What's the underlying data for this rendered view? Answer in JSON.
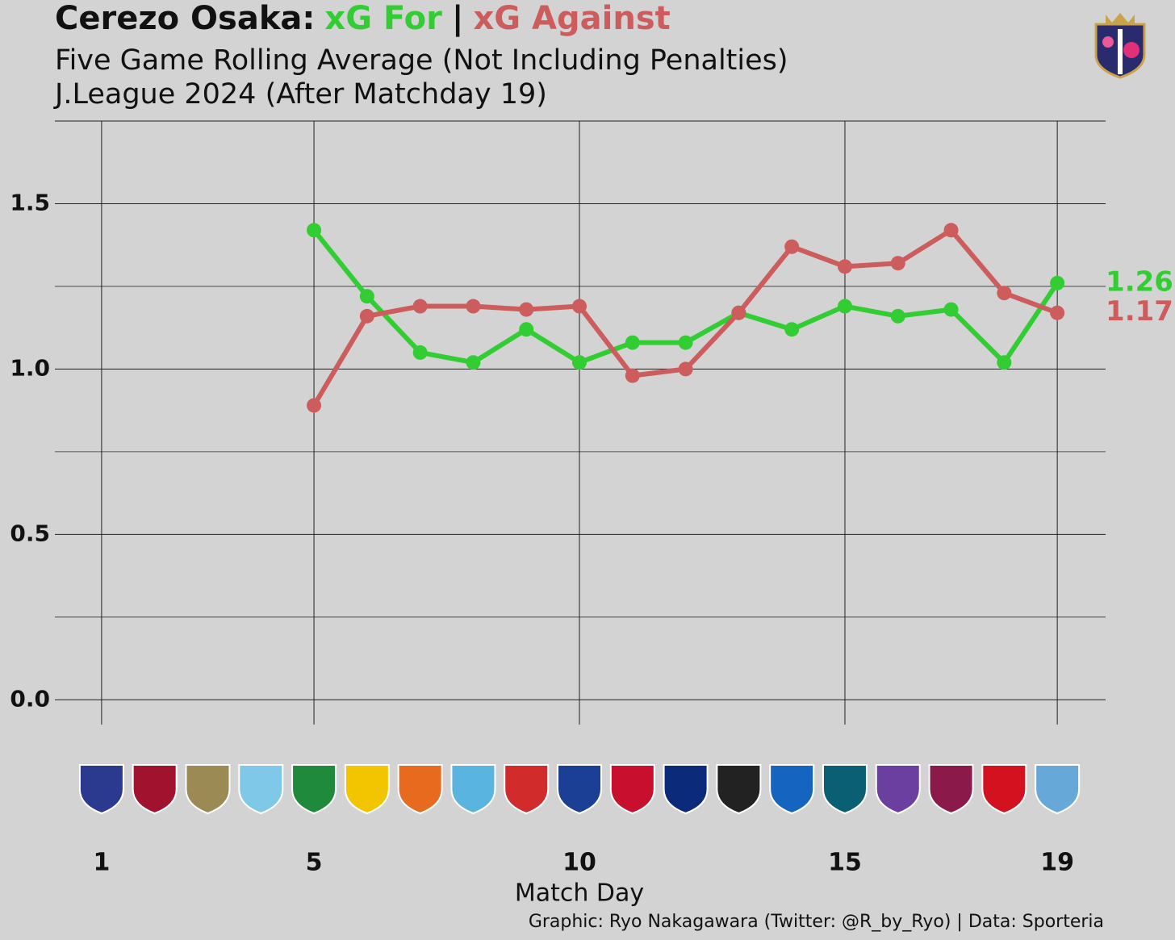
{
  "chart_data": {
    "type": "line",
    "title_parts": [
      {
        "text": "Cerezo Osaka:",
        "color": "#111111"
      },
      {
        "text": "xG For",
        "color": "#32cd32"
      },
      {
        "text": "|",
        "color": "#111111"
      },
      {
        "text": "xG Against",
        "color": "#cd5c5c"
      }
    ],
    "subtitle": [
      "Five Game Rolling Average (Not Including Penalties)",
      "J.League 2024 (After Matchday 19)"
    ],
    "x_label": "Match Day",
    "caption": "Graphic: Ryo Nakagawara (Twitter: @R_by_Ryo) | Data: Sporteria",
    "x": [
      1,
      2,
      3,
      4,
      5,
      6,
      7,
      8,
      9,
      10,
      11,
      12,
      13,
      14,
      15,
      16,
      17,
      18,
      19
    ],
    "series": [
      {
        "name": "xG For",
        "color": "#32cd32",
        "values": [
          null,
          null,
          null,
          null,
          1.42,
          1.22,
          1.05,
          1.02,
          1.12,
          1.02,
          1.08,
          1.08,
          1.17,
          1.12,
          1.19,
          1.16,
          1.18,
          1.02,
          1.26
        ]
      },
      {
        "name": "xG Against",
        "color": "#cd5c5c",
        "values": [
          null,
          null,
          null,
          null,
          0.89,
          1.16,
          1.19,
          1.19,
          1.18,
          1.19,
          0.98,
          1.0,
          1.17,
          1.37,
          1.31,
          1.32,
          1.42,
          1.23,
          1.17
        ]
      }
    ],
    "xlim": [
      0.12,
      19.91
    ],
    "xticks": [
      1,
      5,
      10,
      15,
      19
    ],
    "ylim": [
      -0.075,
      1.75
    ],
    "yticks": [
      {
        "value": 0,
        "label": "0.0"
      },
      0.5,
      {
        "value": 1,
        "label": "1.0"
      },
      1.5
    ],
    "y_minor_ticks": [
      0.25,
      0.75,
      1.25
    ],
    "grid": true
  }
}
